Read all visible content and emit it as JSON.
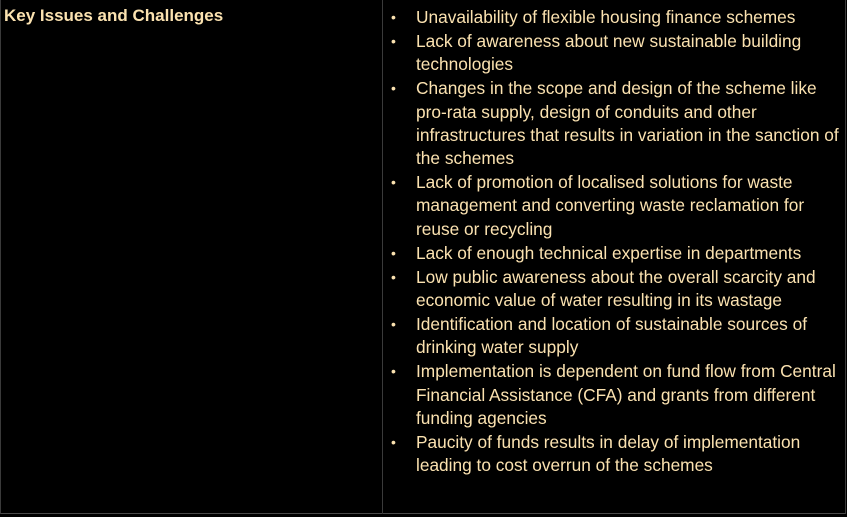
{
  "table": {
    "left_heading": "Key Issues and Challenges",
    "issues": [
      "Unavailability of flexible housing finance schemes",
      "Lack of awareness about new sustainable building technologies",
      "Changes in the scope and design of the scheme like pro-rata supply, design of conduits and other infrastructures that results in variation in the sanction of the schemes",
      "Lack of promotion of localised solutions for waste management and converting waste reclamation for reuse or recycling",
      "Lack of enough technical expertise in departments",
      "Low public awareness about the overall scarcity and economic value of water resulting in its wastage",
      "Identification and location of sustainable sources of drinking water supply",
      "Implementation is dependent on fund flow from Central Financial Assistance (CFA) and grants from different funding agencies",
      "Paucity of funds results in delay of implementation leading to cost overrun of the schemes"
    ]
  },
  "colors": {
    "background": "#000000",
    "text": "#fbe2b0",
    "border": "#3a3a3a"
  }
}
